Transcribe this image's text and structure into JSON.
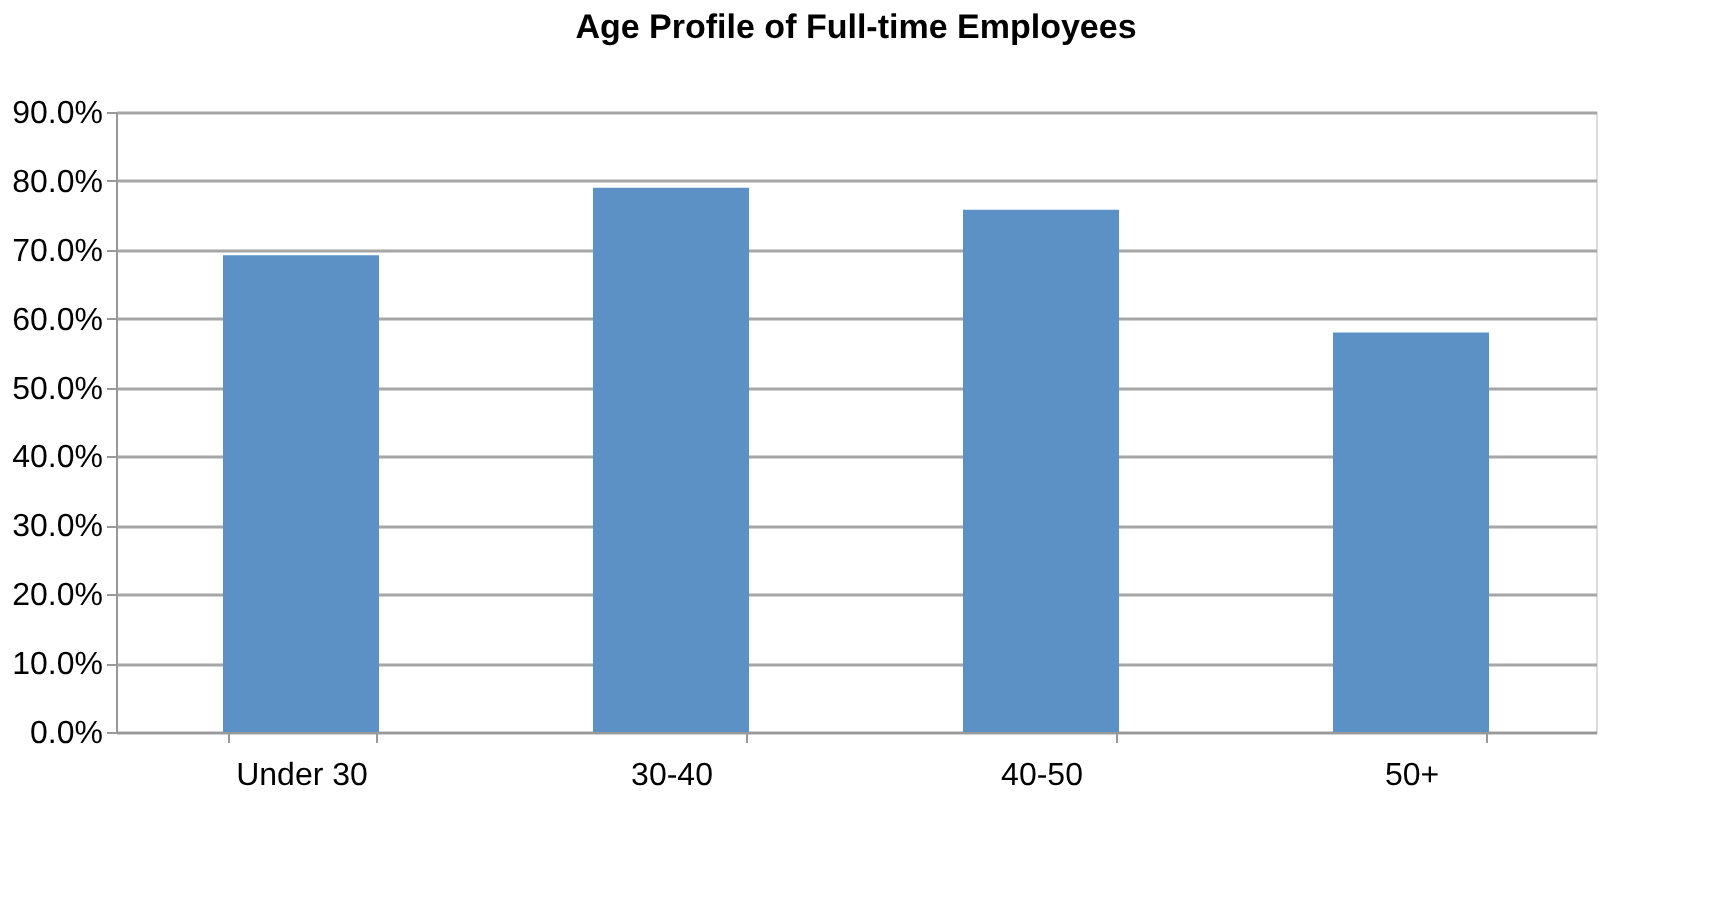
{
  "chart_data": {
    "type": "bar",
    "title": "Age Profile of Full-time Employees",
    "categories": [
      "Under 30",
      "30-40",
      "40-50",
      "50+"
    ],
    "values": [
      69.2,
      79.0,
      75.8,
      58.0
    ],
    "color": "#5b91c5",
    "ylim": [
      0,
      90
    ],
    "yticks": [
      {
        "value": 0,
        "label": "0.0%"
      },
      {
        "value": 10,
        "label": "10.0%"
      },
      {
        "value": 20,
        "label": "20.0%"
      },
      {
        "value": 30,
        "label": "30.0%"
      },
      {
        "value": 40,
        "label": "40.0%"
      },
      {
        "value": 50,
        "label": "50.0%"
      },
      {
        "value": 60,
        "label": "60.0%"
      },
      {
        "value": 70,
        "label": "70.0%"
      },
      {
        "value": 80,
        "label": "80.0%"
      },
      {
        "value": 90,
        "label": "90.0%"
      }
    ],
    "grid": "y"
  }
}
